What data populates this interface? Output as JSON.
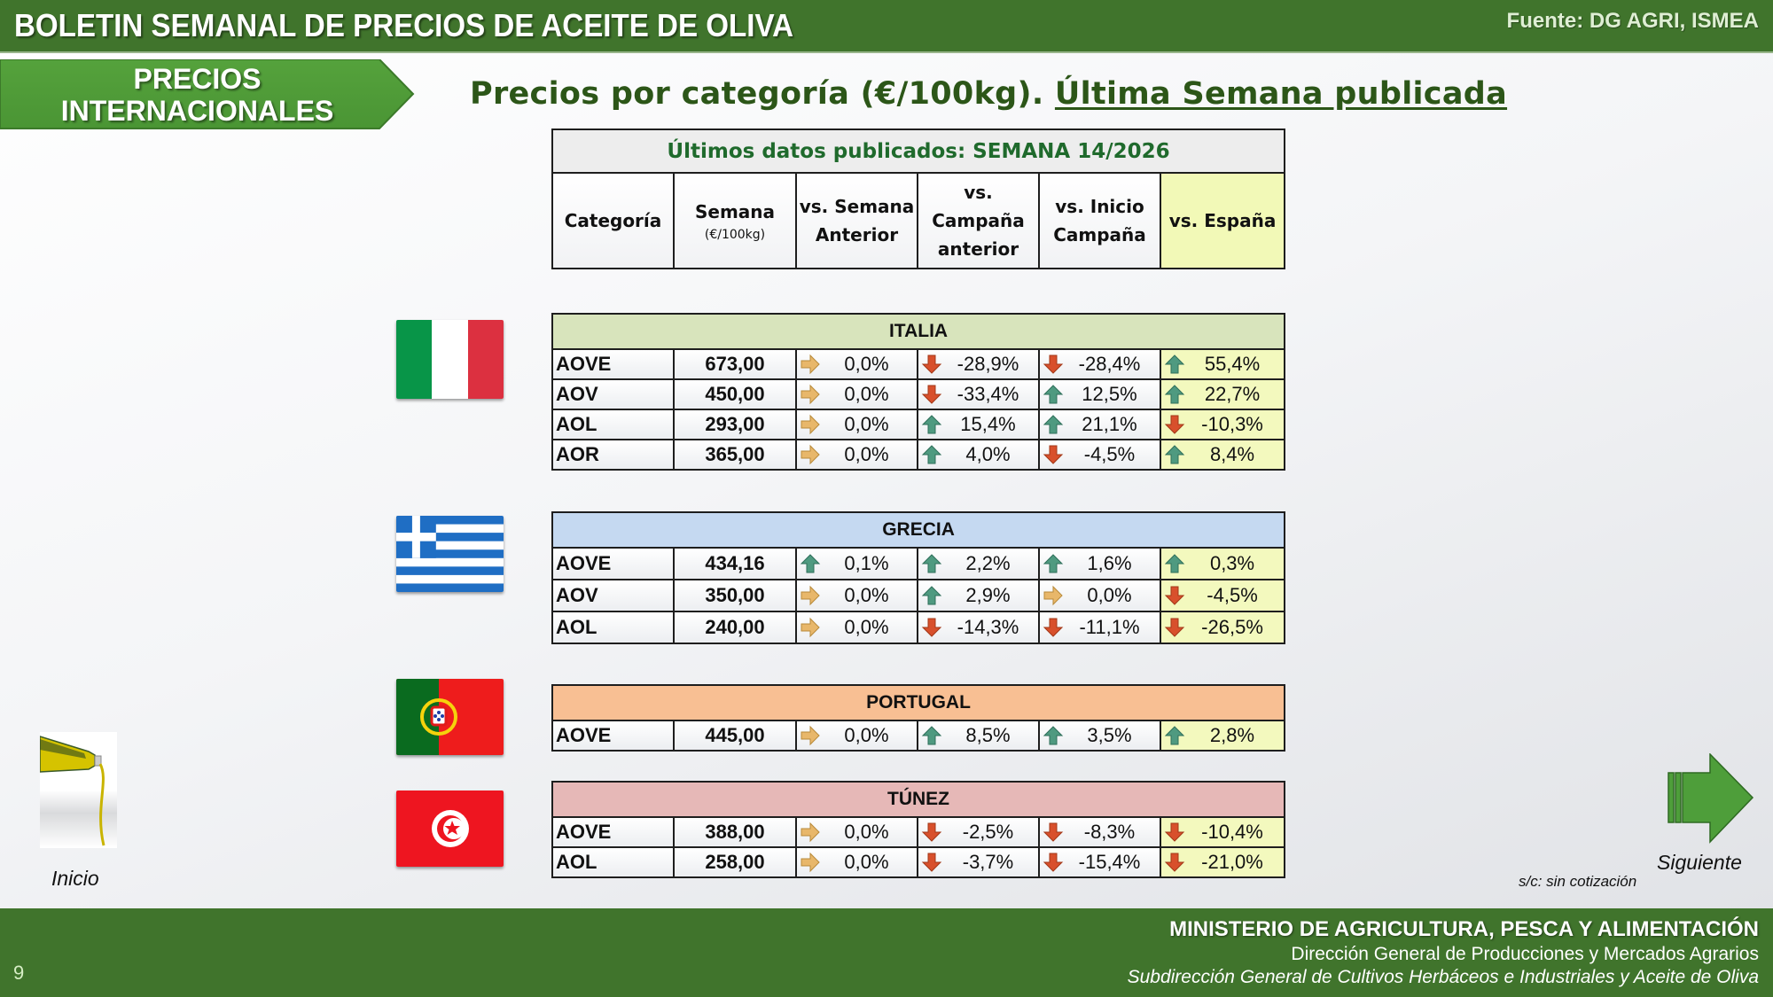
{
  "header": {
    "title": "BOLETIN SEMANAL DE PRECIOS DE ACEITE DE OLIVA",
    "source": "Fuente: DG AGRI, ISMEA"
  },
  "section_tag": {
    "line1": "PRECIOS",
    "line2": "INTERNACIONALES"
  },
  "subtitle": {
    "main": "Precios por categoría (€/100kg).",
    "underlined": "Última Semana publicada"
  },
  "table_header": {
    "week_banner": "Últimos datos publicados: SEMANA 14/2026",
    "columns": {
      "categoria": "Categoría",
      "semana": "Semana",
      "semana_unit": "(€/100kg)",
      "vs_semana_1": "vs. Semana",
      "vs_semana_2": "Anterior",
      "vs_campana_1": "vs.",
      "vs_campana_2": "Campaña",
      "vs_campana_3": "anterior",
      "vs_inicio_1": "vs. Inicio",
      "vs_inicio_2": "Campaña",
      "vs_espana": "vs. España"
    }
  },
  "colors": {
    "green_dark": "#40742c",
    "arrow_up": "#4f9a80",
    "arrow_down": "#d8502c",
    "arrow_flat": "#e8b76a",
    "italia_band": "#d8e4bc",
    "grecia_band": "#c5d9f1",
    "portugal_band": "#f8bf93",
    "tunez_band": "#e6b8b7",
    "espana_col": "#f3f9be"
  },
  "countries": {
    "italia": {
      "name": "ITALIA",
      "rows": [
        {
          "cat": "AOVE",
          "semana": "673,00",
          "vs_sem": "0,0%",
          "vs_sem_dir": "flat",
          "vs_camp": "-28,9%",
          "vs_camp_dir": "down",
          "vs_ini": "-28,4%",
          "vs_ini_dir": "down",
          "vs_es": "55,4%",
          "vs_es_dir": "up"
        },
        {
          "cat": "AOV",
          "semana": "450,00",
          "vs_sem": "0,0%",
          "vs_sem_dir": "flat",
          "vs_camp": "-33,4%",
          "vs_camp_dir": "down",
          "vs_ini": "12,5%",
          "vs_ini_dir": "up",
          "vs_es": "22,7%",
          "vs_es_dir": "up"
        },
        {
          "cat": "AOL",
          "semana": "293,00",
          "vs_sem": "0,0%",
          "vs_sem_dir": "flat",
          "vs_camp": "15,4%",
          "vs_camp_dir": "up",
          "vs_ini": "21,1%",
          "vs_ini_dir": "up",
          "vs_es": "-10,3%",
          "vs_es_dir": "down"
        },
        {
          "cat": "AOR",
          "semana": "365,00",
          "vs_sem": "0,0%",
          "vs_sem_dir": "flat",
          "vs_camp": "4,0%",
          "vs_camp_dir": "up",
          "vs_ini": "-4,5%",
          "vs_ini_dir": "down",
          "vs_es": "8,4%",
          "vs_es_dir": "up"
        }
      ]
    },
    "grecia": {
      "name": "GRECIA",
      "rows": [
        {
          "cat": "AOVE",
          "semana": "434,16",
          "vs_sem": "0,1%",
          "vs_sem_dir": "up",
          "vs_camp": "2,2%",
          "vs_camp_dir": "up",
          "vs_ini": "1,6%",
          "vs_ini_dir": "up",
          "vs_es": "0,3%",
          "vs_es_dir": "up"
        },
        {
          "cat": "AOV",
          "semana": "350,00",
          "vs_sem": "0,0%",
          "vs_sem_dir": "flat",
          "vs_camp": "2,9%",
          "vs_camp_dir": "up",
          "vs_ini": "0,0%",
          "vs_ini_dir": "flat",
          "vs_es": "-4,5%",
          "vs_es_dir": "down"
        },
        {
          "cat": "AOL",
          "semana": "240,00",
          "vs_sem": "0,0%",
          "vs_sem_dir": "flat",
          "vs_camp": "-14,3%",
          "vs_camp_dir": "down",
          "vs_ini": "-11,1%",
          "vs_ini_dir": "down",
          "vs_es": "-26,5%",
          "vs_es_dir": "down"
        }
      ]
    },
    "portugal": {
      "name": "PORTUGAL",
      "rows": [
        {
          "cat": "AOVE",
          "semana": "445,00",
          "vs_sem": "0,0%",
          "vs_sem_dir": "flat",
          "vs_camp": "8,5%",
          "vs_camp_dir": "up",
          "vs_ini": "3,5%",
          "vs_ini_dir": "up",
          "vs_es": "2,8%",
          "vs_es_dir": "up"
        }
      ]
    },
    "tunez": {
      "name": "TÚNEZ",
      "rows": [
        {
          "cat": "AOVE",
          "semana": "388,00",
          "vs_sem": "0,0%",
          "vs_sem_dir": "flat",
          "vs_camp": "-2,5%",
          "vs_camp_dir": "down",
          "vs_ini": "-8,3%",
          "vs_ini_dir": "down",
          "vs_es": "-10,4%",
          "vs_es_dir": "down"
        },
        {
          "cat": "AOL",
          "semana": "258,00",
          "vs_sem": "0,0%",
          "vs_sem_dir": "flat",
          "vs_camp": "-3,7%",
          "vs_camp_dir": "down",
          "vs_ini": "-15,4%",
          "vs_ini_dir": "down",
          "vs_es": "-21,0%",
          "vs_es_dir": "down"
        }
      ]
    }
  },
  "nav": {
    "inicio_label": "Inicio",
    "siguiente_label": "Siguiente",
    "note": "s/c: sin cotización"
  },
  "footer": {
    "page_number": "9",
    "line1": "MINISTERIO DE AGRICULTURA, PESCA Y ALIMENTACIÓN",
    "line2": "Dirección General de Producciones y Mercados Agrarios",
    "line3": "Subdirección General de Cultivos Herbáceos e Industriales y Aceite de Oliva"
  }
}
